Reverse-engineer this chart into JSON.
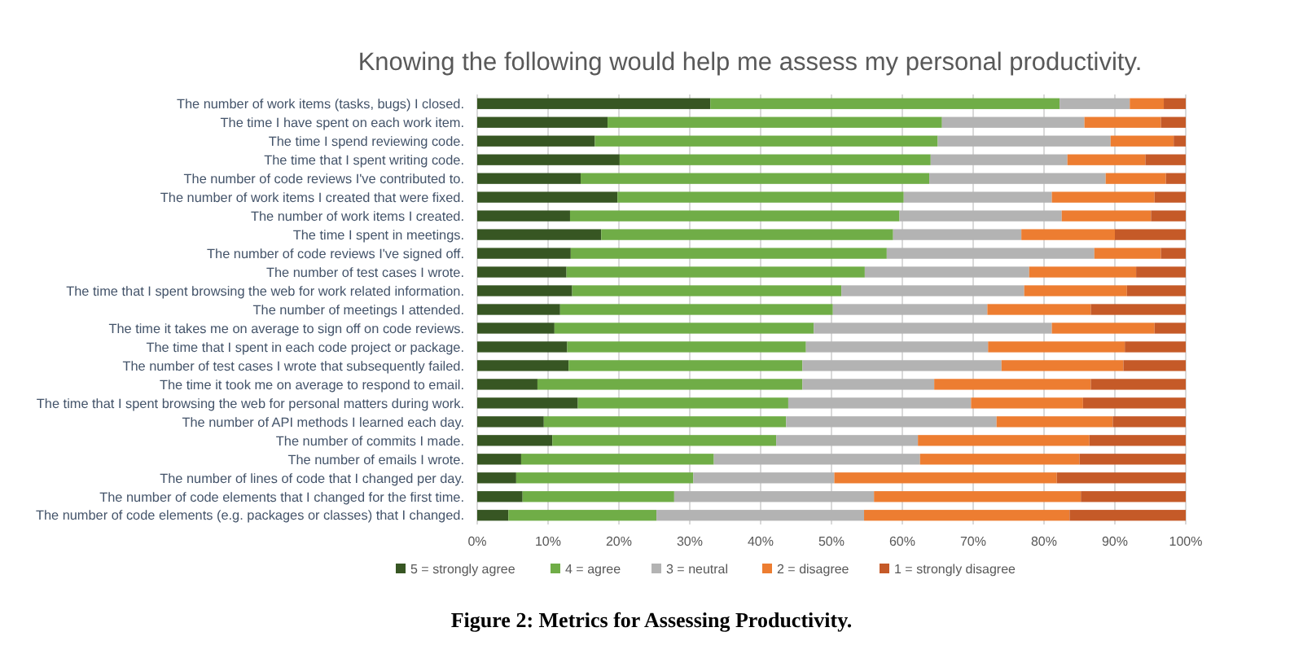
{
  "chart_data": {
    "type": "bar",
    "orientation": "horizontal",
    "stacked": true,
    "title": "Knowing the following would help me assess my personal productivity.",
    "categories": [
      "The number of work items (tasks, bugs) I closed.",
      "The time I have spent on each work item.",
      "The time I spend reviewing code.",
      "The time that I spent writing code.",
      "The number of code reviews I've contributed to.",
      "The number of work items I created that were fixed.",
      "The number of work items I created.",
      "The time I spent in meetings.",
      "The number of code reviews I've signed off.",
      "The number of test cases I wrote.",
      "The time that I spent browsing the web for work related information.",
      "The number of meetings I attended.",
      "The time it takes me on average to sign off on code reviews.",
      "The time that I spent in each code project or package.",
      "The number of test cases I wrote that subsequently failed.",
      "The time it took me on average to respond to email.",
      "The time that I spent browsing the web for personal matters  during work.",
      "The number of API methods I learned each day.",
      "The number of commits I made.",
      "The number of emails I wrote.",
      "The number of lines of code that I changed per day.",
      "The number of code elements that I changed for the first time.",
      "The number of code elements (e.g. packages or classes) that I changed."
    ],
    "series": [
      {
        "name": "5 = strongly agree",
        "color": "#375623",
        "values": [
          32.9,
          18.4,
          16.6,
          20.1,
          14.6,
          19.8,
          13.1,
          17.5,
          13.2,
          12.6,
          13.4,
          11.7,
          10.9,
          12.7,
          12.9,
          8.5,
          14.2,
          9.4,
          10.6,
          6.2,
          5.5,
          6.4,
          4.4
        ]
      },
      {
        "name": "4 = agree",
        "color": "#70ad47",
        "values": [
          49.3,
          47.2,
          48.4,
          43.9,
          49.2,
          40.4,
          46.5,
          41.2,
          44.6,
          42.1,
          38.0,
          38.5,
          36.6,
          33.7,
          33.0,
          37.4,
          29.7,
          34.2,
          31.6,
          27.2,
          25.0,
          21.4,
          20.9
        ]
      },
      {
        "name": "3  = neutral",
        "color": "#b3b3b3",
        "values": [
          9.9,
          20.1,
          24.4,
          19.3,
          24.9,
          20.9,
          22.9,
          18.1,
          29.3,
          23.2,
          25.8,
          21.8,
          33.6,
          25.7,
          28.1,
          18.6,
          25.8,
          29.7,
          20.0,
          29.1,
          19.9,
          28.2,
          29.3
        ]
      },
      {
        "name": "2 = disagree",
        "color": "#ed7d31",
        "values": [
          4.8,
          10.8,
          8.9,
          11.0,
          8.5,
          14.5,
          12.6,
          13.2,
          9.4,
          15.1,
          14.5,
          14.6,
          14.5,
          19.3,
          17.2,
          22.1,
          15.8,
          16.4,
          24.2,
          22.5,
          31.4,
          29.2,
          29.0
        ]
      },
      {
        "name": "1 = strongly disagree",
        "color": "#c55a28",
        "values": [
          3.1,
          3.5,
          1.7,
          5.7,
          2.8,
          4.4,
          4.9,
          10.0,
          3.5,
          7.0,
          8.3,
          13.4,
          4.4,
          8.6,
          8.8,
          13.4,
          14.5,
          10.3,
          13.6,
          15.0,
          18.2,
          14.8,
          16.4
        ]
      }
    ],
    "xlim": [
      0,
      100
    ],
    "xticks": [
      {
        "value": 0,
        "label": "0%"
      },
      {
        "value": 10,
        "label": "10%"
      },
      {
        "value": 20,
        "label": "20%"
      },
      {
        "value": 30,
        "label": "30%"
      },
      {
        "value": 40,
        "label": "40%"
      },
      {
        "value": 50,
        "label": "50%"
      },
      {
        "value": 60,
        "label": "60%"
      },
      {
        "value": 70,
        "label": "70%"
      },
      {
        "value": 80,
        "label": "80%"
      },
      {
        "value": 90,
        "label": "90%"
      },
      {
        "value": 100,
        "label": "100%"
      }
    ],
    "grid": "x",
    "legend": "bottom",
    "annotations": [
      "Figure 2: Metrics for Assessing Productivity."
    ]
  }
}
